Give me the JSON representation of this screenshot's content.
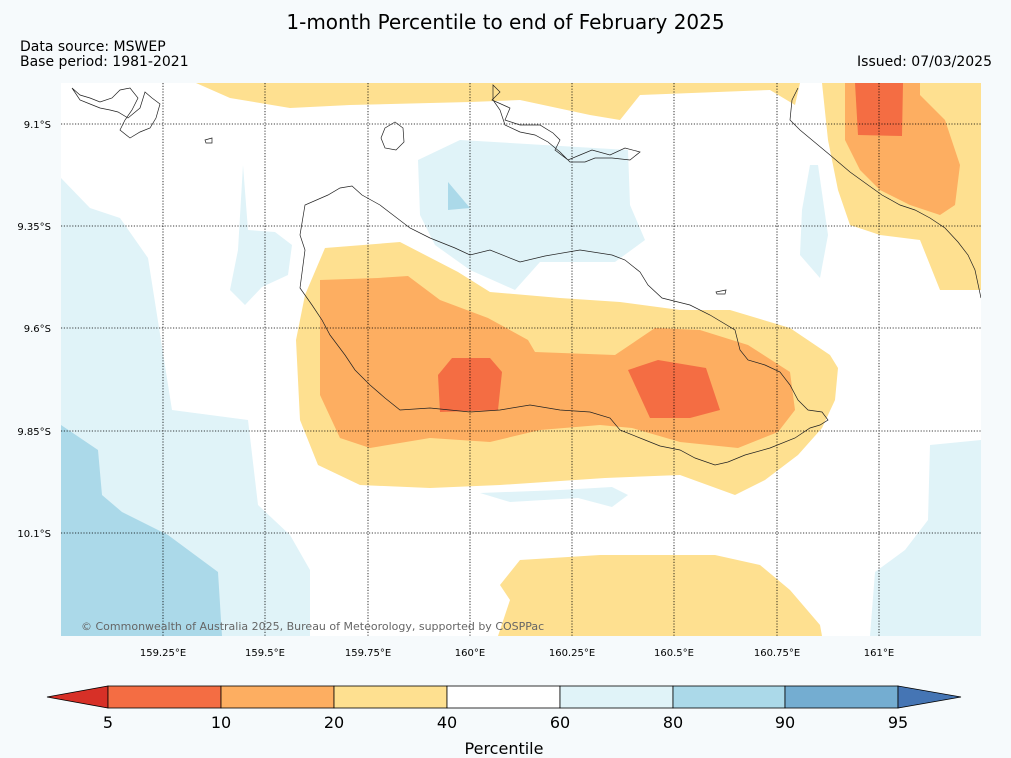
{
  "title": "1-month Percentile to end of February 2025",
  "data_source": "Data source: MSWEP",
  "base_period": "Base period: 1981-2021",
  "issued": "Issued: 07/03/2025",
  "copyright": "© Commonwealth of Australia 2025, Bureau of Meteorology, supported by COSPPac",
  "lat_labels": [
    "9.1°S",
    "9.35°S",
    "9.6°S",
    "9.85°S",
    "10.1°S"
  ],
  "lon_labels": [
    "159.25°E",
    "159.5°E",
    "159.75°E",
    "160°E",
    "160.25°E",
    "160.5°E",
    "160.75°E",
    "161°E"
  ],
  "colorbar": {
    "label": "Percentile",
    "ticks": [
      "5",
      "10",
      "20",
      "40",
      "60",
      "80",
      "90",
      "95"
    ],
    "colors": {
      "lt5": "#d73027",
      "c5_10": "#f46d43",
      "c10_20": "#fdae61",
      "c20_40": "#fee090",
      "c40_60": "#ffffff",
      "c60_80": "#e0f3f8",
      "c80_90": "#abd9e9",
      "c90_95": "#74add1",
      "gt95": "#4575b4"
    }
  }
}
